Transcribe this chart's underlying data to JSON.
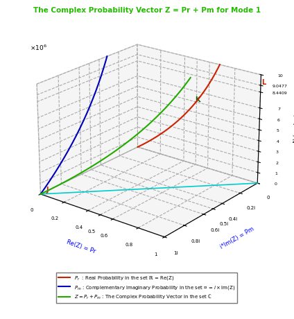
{
  "title": "The Complex Probability Vector Z = Pr + Pm for Mode 1",
  "title_color": "#22bb00",
  "xlabel": "Re(Z) = Pr",
  "ylabel": "i*Im(Z) = Pm",
  "zlabel": "N (cycles)",
  "color_pr": "#cc2200",
  "color_pm": "#0000bb",
  "color_z": "#22aa00",
  "color_cyan": "#00cccc",
  "label_pr": "$P_r$  : Real Probability in the set $\\mathbb{R}$ = Re(Z)",
  "label_pm": "$P_m$ : Complementary Imaginary Probability in the set $\\mathcal{M}$ = $i\\times$Im(Z)",
  "label_z": "$Z= P_r + P_m$ : The Complex Probability Vector in the set $\\mathbb{C}$",
  "elev": 22,
  "azim": -52,
  "background_color": "#ffffff"
}
